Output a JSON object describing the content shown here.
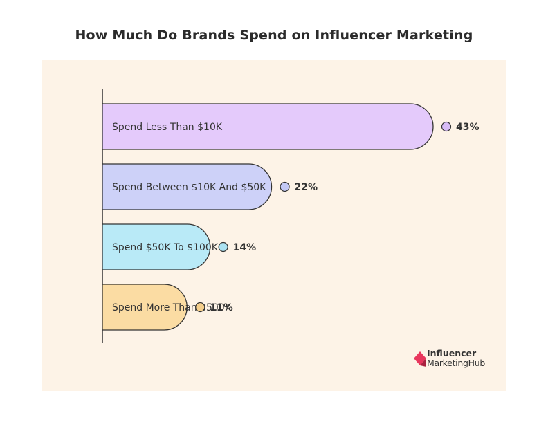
{
  "chart_data": {
    "type": "bar",
    "orientation": "horizontal",
    "title": "How Much Do Brands Spend on Influencer Marketing",
    "categories": [
      "Spend Less Than $10K",
      "Spend Between $10K And $50K",
      "Spend $50K To $100K",
      "Spend More Than $500K"
    ],
    "values": [
      43,
      22,
      14,
      11
    ],
    "value_labels": [
      "43%",
      "22%",
      "14%",
      "11%"
    ],
    "colors": [
      "#e4cafb",
      "#cdd1f8",
      "#b9eaf7",
      "#fbdca3"
    ],
    "dot_colors": [
      "#d8bcf7",
      "#c3c8f5",
      "#abe2f2",
      "#f5cf8c"
    ],
    "xlim": [
      0,
      43
    ],
    "grid": false,
    "legend": false
  },
  "logo": {
    "line1": "Influencer",
    "line2": "MarketingHub",
    "color": "#e8365d"
  }
}
